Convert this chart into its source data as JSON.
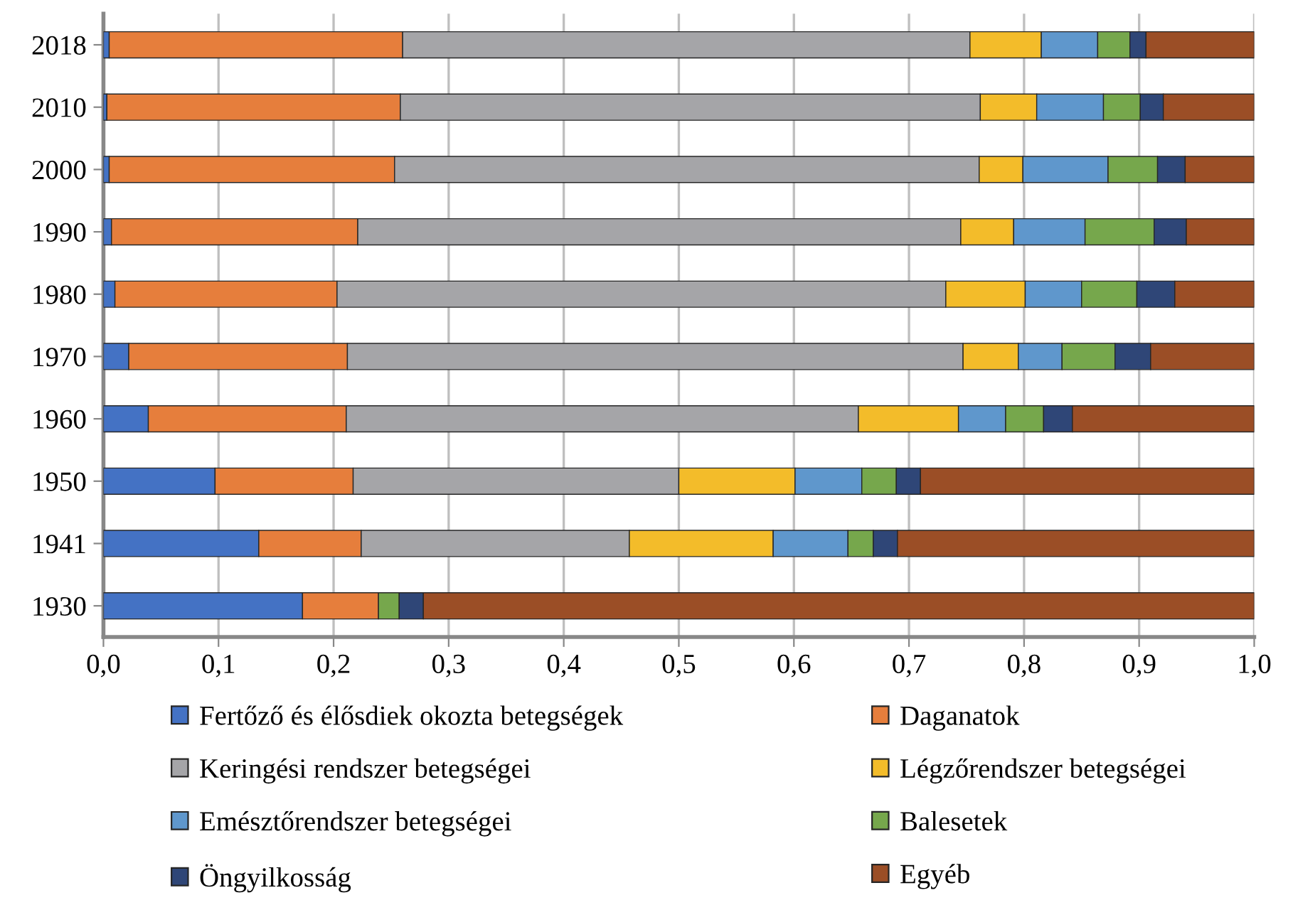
{
  "chart_data": {
    "type": "bar",
    "orientation": "horizontal",
    "stacked": true,
    "categories": [
      "2018",
      "2010",
      "2000",
      "1990",
      "1980",
      "1970",
      "1960",
      "1950",
      "1941",
      "1930"
    ],
    "series": [
      {
        "name": "Fertőző és élősdiek okozta betegségek",
        "color": "#4472c4",
        "values": [
          0.005,
          0.003,
          0.005,
          0.007,
          0.01,
          0.022,
          0.039,
          0.097,
          0.135,
          0.173
        ]
      },
      {
        "name": "Daganatok",
        "color": "#e67e3c",
        "values": [
          0.255,
          0.255,
          0.248,
          0.214,
          0.193,
          0.19,
          0.172,
          0.12,
          0.089,
          0.066
        ]
      },
      {
        "name": "Keringési rendszer betegségei",
        "color": "#a5a5a8",
        "values": [
          0.493,
          0.504,
          0.508,
          0.524,
          0.529,
          0.535,
          0.445,
          0.283,
          0.233,
          null
        ]
      },
      {
        "name": "Légzőrendszer betegségei",
        "color": "#f3bc2a",
        "values": [
          0.062,
          0.049,
          0.038,
          0.046,
          0.069,
          0.048,
          0.087,
          0.101,
          0.125,
          null
        ]
      },
      {
        "name": "Emésztőrendszer betegségei",
        "color": "#5f97cc",
        "values": [
          0.049,
          0.058,
          0.074,
          0.062,
          0.049,
          0.038,
          0.041,
          0.058,
          0.065,
          null
        ]
      },
      {
        "name": "Balesetek",
        "color": "#76a74c",
        "values": [
          0.028,
          0.032,
          0.043,
          0.06,
          0.048,
          0.046,
          0.033,
          0.03,
          0.022,
          0.018
        ]
      },
      {
        "name": "Öngyilkosság",
        "color": "#2f4677",
        "values": [
          0.014,
          0.02,
          0.024,
          0.028,
          0.033,
          0.031,
          0.025,
          0.021,
          0.021,
          0.021
        ]
      },
      {
        "name": "Egyéb",
        "color": "#9b4e26",
        "values": [
          0.094,
          0.079,
          0.06,
          0.059,
          0.069,
          0.09,
          0.158,
          0.29,
          0.31,
          0.722
        ]
      }
    ],
    "xlim": [
      0,
      1.0
    ],
    "xticks": [
      {
        "value": 0,
        "label": "0,0"
      },
      {
        "value": 0.1,
        "label": "0,1"
      },
      {
        "value": 0.2,
        "label": "0,2"
      },
      {
        "value": 0.3,
        "label": "0,3"
      },
      {
        "value": 0.4,
        "label": "0,4"
      },
      {
        "value": 0.5,
        "label": "0,5"
      },
      {
        "value": 0.6,
        "label": "0,6"
      },
      {
        "value": 0.7,
        "label": "0,7"
      },
      {
        "value": 0.8,
        "label": "0,8"
      },
      {
        "value": 0.9,
        "label": "0,9"
      },
      {
        "value": 1.0,
        "label": "1,0"
      }
    ],
    "grid": "x",
    "legend": "bottom"
  }
}
